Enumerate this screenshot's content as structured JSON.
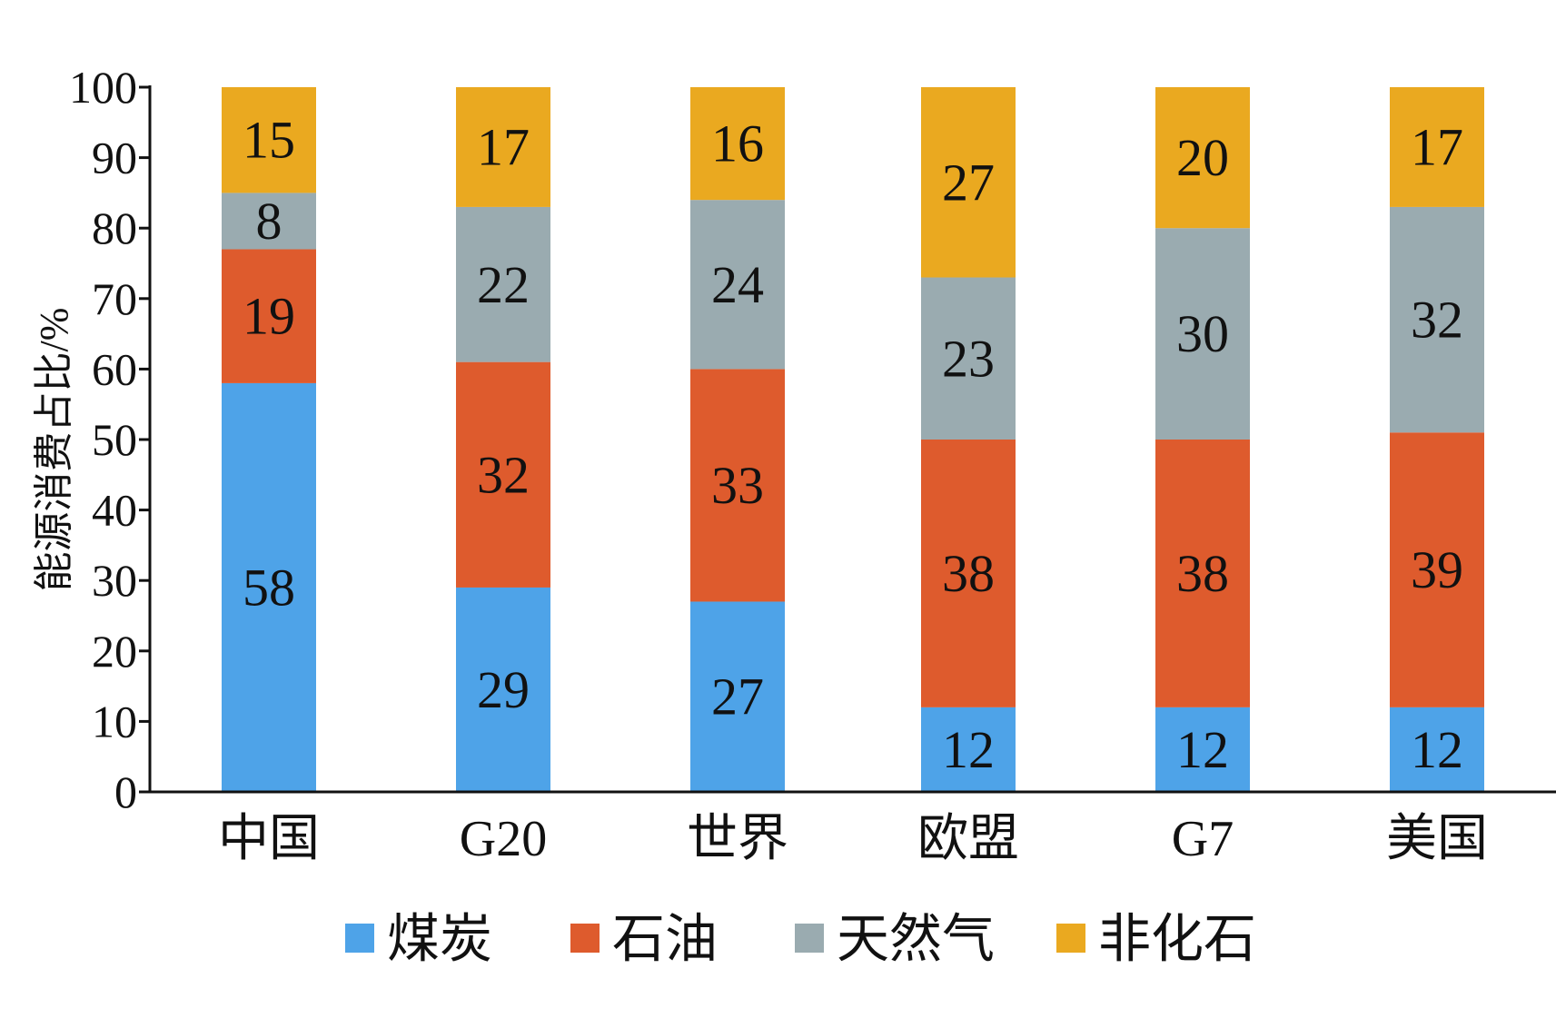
{
  "chart_data": {
    "type": "bar",
    "stacked": true,
    "title": "",
    "xlabel": "",
    "ylabel": "能源消费占比/%",
    "ylim": [
      0,
      100
    ],
    "yticks": [
      0,
      10,
      20,
      30,
      40,
      50,
      60,
      70,
      80,
      90,
      100
    ],
    "grid": false,
    "legend_position": "bottom",
    "categories": [
      "中国",
      "G20",
      "世界",
      "欧盟",
      "G7",
      "美国"
    ],
    "series": [
      {
        "name": "煤炭",
        "color": "#4ea3e8",
        "values": [
          58,
          29,
          27,
          12,
          12,
          12
        ]
      },
      {
        "name": "石油",
        "color": "#de5b2d",
        "values": [
          19,
          32,
          33,
          38,
          38,
          39
        ]
      },
      {
        "name": "天然气",
        "color": "#9aabb0",
        "values": [
          8,
          22,
          24,
          23,
          30,
          32
        ]
      },
      {
        "name": "非化石",
        "color": "#eaa920",
        "values": [
          15,
          17,
          16,
          27,
          20,
          17
        ]
      }
    ]
  }
}
